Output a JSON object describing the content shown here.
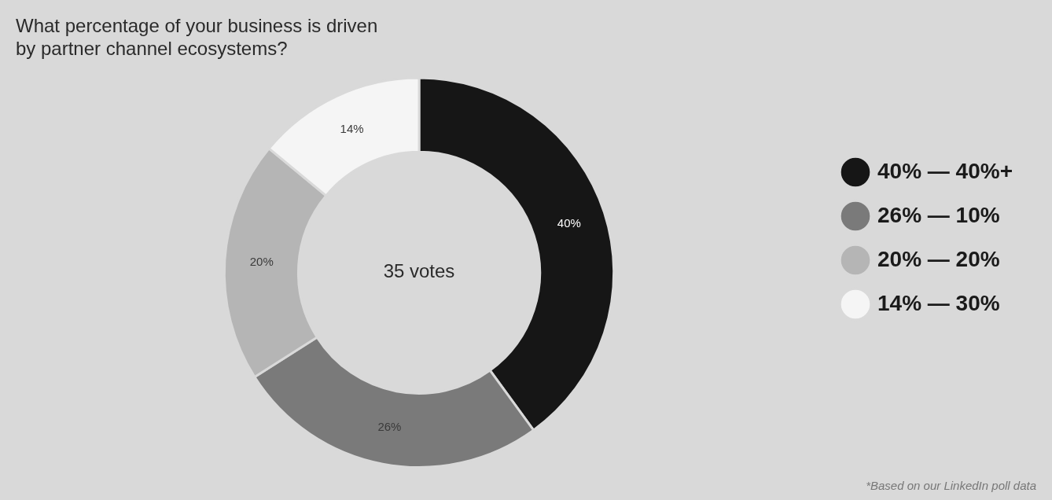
{
  "chart_data": {
    "type": "doughnut",
    "title": [
      "What percentage of your business is driven",
      "by partner channel ecosystems?"
    ],
    "categories": [
      "40% — 40%+",
      "26% — 10%",
      "20% — 20%",
      "14% — 30%"
    ],
    "values": [
      40,
      26,
      20,
      14
    ],
    "value_labels": [
      "40%",
      "26%",
      "20%",
      "14%"
    ],
    "data_labels": true,
    "colors": [
      "#161616",
      "#7a7a7a",
      "#b5b5b5",
      "#f5f5f5"
    ],
    "legend": "right",
    "annotations": [
      "35 votes",
      "*Based on our LinkedIn poll data"
    ]
  }
}
